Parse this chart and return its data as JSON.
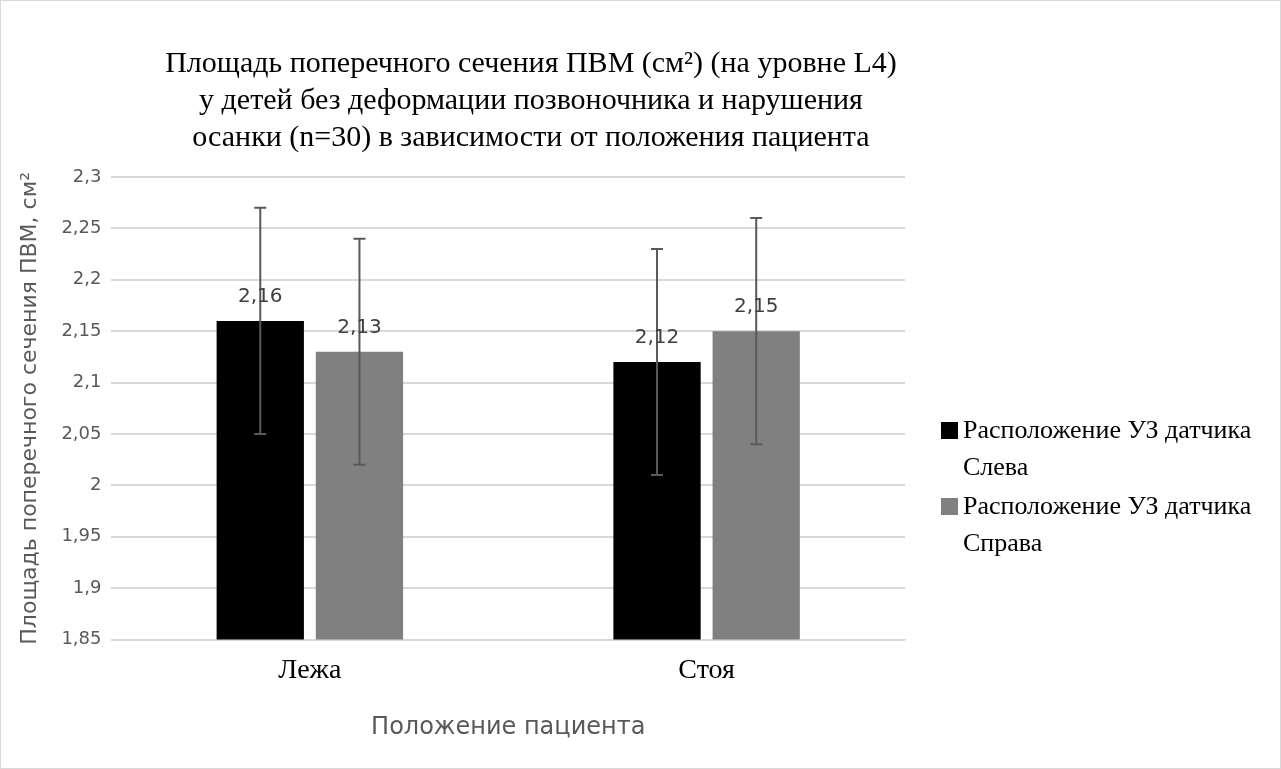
{
  "chart_data": {
    "type": "bar",
    "title": "Площадь поперечного сечения ПВМ (см²) (на уровне L4) у детей без деформации позвоночника и нарушения осанки (n=30) в зависимости от положения пациента",
    "xlabel": "Положение пациента",
    "ylabel": "Площадь поперечного сечения ПВМ, см²",
    "categories": [
      "Лежа",
      "Стоя"
    ],
    "series": [
      {
        "name": "Расположение УЗ датчика Слева",
        "color": "#000000",
        "values": [
          2.16,
          2.12
        ],
        "errors": [
          0.11,
          0.11
        ],
        "value_labels": [
          "2,16",
          "2,12"
        ]
      },
      {
        "name": "Расположение УЗ датчика Справа",
        "color": "#808080",
        "values": [
          2.13,
          2.15
        ],
        "errors": [
          0.11,
          0.11
        ],
        "value_labels": [
          "2,13",
          "2,15"
        ]
      }
    ],
    "ylim": [
      1.85,
      2.3
    ],
    "yticks": [
      {
        "value": 1.85,
        "label": "1,85"
      },
      {
        "value": 1.9,
        "label": "1,9"
      },
      {
        "value": 1.95,
        "label": "1,95"
      },
      {
        "value": 2,
        "label": "2"
      },
      {
        "value": 2.05,
        "label": "2,05"
      },
      {
        "value": 2.1,
        "label": "2,1"
      },
      {
        "value": 2.15,
        "label": "2,15"
      },
      {
        "value": 2.2,
        "label": "2,2"
      },
      {
        "value": 2.25,
        "label": "2,25"
      },
      {
        "value": 2.3,
        "label": "2,3"
      }
    ],
    "grid": "y",
    "legend": "right"
  }
}
